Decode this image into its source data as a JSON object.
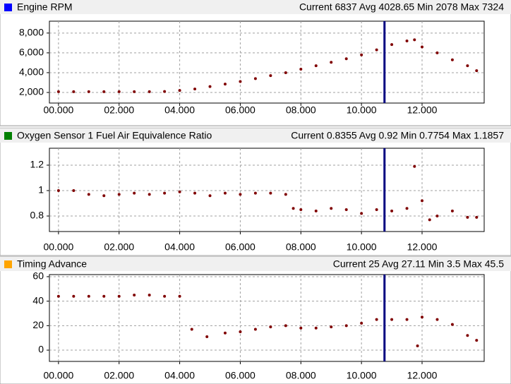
{
  "chart_data": [
    {
      "type": "line",
      "title": "Engine RPM",
      "stats": "Current 6837 Avg 4028.65 Min 2078 Max 7324",
      "swatch_color": "#0000ff",
      "color": "#800000",
      "cursor_x": 10.76,
      "cursor_color": "#000080",
      "grid": true,
      "xlim": [
        -0.3,
        14.05
      ],
      "xticks": [
        {
          "value": 0,
          "label": "00.000"
        },
        {
          "value": 2,
          "label": "02.000"
        },
        {
          "value": 4,
          "label": "04.000"
        },
        {
          "value": 6,
          "label": "06.000"
        },
        {
          "value": 8,
          "label": "08.000"
        },
        {
          "value": 10,
          "label": "10.000"
        },
        {
          "value": 12,
          "label": "12.000"
        }
      ],
      "ylim": [
        930,
        9200
      ],
      "yticks": [
        {
          "value": 2000,
          "label": "2,000"
        },
        {
          "value": 4000,
          "label": "4,000"
        },
        {
          "value": 6000,
          "label": "6,000"
        },
        {
          "value": 8000,
          "label": "8,000"
        }
      ],
      "x": [
        0,
        0.5,
        1,
        1.5,
        2,
        2.5,
        3,
        3.5,
        4,
        4.5,
        5,
        5.5,
        6,
        6.5,
        7,
        7.5,
        8,
        8.5,
        9,
        9.5,
        10,
        10.5,
        11,
        11.5,
        11.75,
        12,
        12.5,
        13,
        13.5,
        13.8
      ],
      "values": [
        2078,
        2078,
        2078,
        2078,
        2078,
        2078,
        2078,
        2100,
        2200,
        2350,
        2600,
        2850,
        3100,
        3400,
        3700,
        4000,
        4350,
        4700,
        5050,
        5400,
        5800,
        6300,
        6837,
        7200,
        7324,
        6600,
        6000,
        5300,
        4700,
        4200
      ]
    },
    {
      "type": "line",
      "title": "Oxygen Sensor 1 Fuel Air Equivalence Ratio",
      "stats": "Current 0.8355 Avg 0.92 Min 0.7754 Max 1.1857",
      "swatch_color": "#008000",
      "color": "#800000",
      "cursor_x": 10.76,
      "cursor_color": "#000080",
      "grid": true,
      "xlim": [
        -0.3,
        14.05
      ],
      "xticks": [
        {
          "value": 0,
          "label": "00.000"
        },
        {
          "value": 2,
          "label": "02.000"
        },
        {
          "value": 4,
          "label": "04.000"
        },
        {
          "value": 6,
          "label": "06.000"
        },
        {
          "value": 8,
          "label": "08.000"
        },
        {
          "value": 10,
          "label": "10.000"
        },
        {
          "value": 12,
          "label": "12.000"
        }
      ],
      "ylim": [
        0.678,
        1.333
      ],
      "yticks": [
        0.8,
        1,
        1.2
      ],
      "x": [
        0,
        0.5,
        1,
        1.5,
        2,
        2.5,
        3,
        3.5,
        4,
        4.5,
        5,
        5.5,
        6,
        6.5,
        7,
        7.5,
        7.75,
        8,
        8.5,
        9,
        9.5,
        10,
        10.5,
        11,
        11.5,
        11.75,
        12,
        12.25,
        12.5,
        13,
        13.5,
        13.8
      ],
      "values": [
        1.0,
        1.0,
        0.97,
        0.96,
        0.97,
        0.98,
        0.97,
        0.98,
        0.99,
        0.98,
        0.96,
        0.98,
        0.97,
        0.98,
        0.98,
        0.97,
        0.86,
        0.85,
        0.84,
        0.86,
        0.85,
        0.82,
        0.85,
        0.84,
        0.86,
        1.19,
        0.92,
        0.77,
        0.8,
        0.84,
        0.79,
        0.79
      ]
    },
    {
      "type": "line",
      "title": "Timing Advance",
      "stats": "Current 25 Avg 27.11 Min 3.5 Max 45.5",
      "swatch_color": "#ffa500",
      "color": "#800000",
      "cursor_x": 10.76,
      "cursor_color": "#000080",
      "grid": true,
      "xlim": [
        -0.3,
        14.05
      ],
      "xticks": [
        {
          "value": 0,
          "label": "00.000"
        },
        {
          "value": 2,
          "label": "02.000"
        },
        {
          "value": 4,
          "label": "04.000"
        },
        {
          "value": 6,
          "label": "06.000"
        },
        {
          "value": 8,
          "label": "08.000"
        },
        {
          "value": 10,
          "label": "10.000"
        },
        {
          "value": 12,
          "label": "12.000"
        }
      ],
      "ylim": [
        -9.2,
        61.7
      ],
      "yticks": [
        0,
        20,
        40,
        60
      ],
      "x": [
        0,
        0.5,
        1,
        1.5,
        2,
        2.5,
        3,
        3.5,
        4,
        4.4,
        4.9,
        5.5,
        6,
        6.5,
        7,
        7.5,
        8,
        8.5,
        9,
        9.5,
        10,
        10.5,
        11,
        11.5,
        11.85,
        12,
        12.5,
        13,
        13.5,
        13.8
      ],
      "values": [
        44,
        44,
        44,
        44,
        44,
        45,
        45,
        44,
        44,
        17,
        11,
        14,
        15,
        17,
        19,
        20,
        18,
        18,
        19,
        20,
        22,
        25,
        25,
        25,
        3.5,
        27,
        25,
        21,
        12,
        8
      ]
    }
  ]
}
